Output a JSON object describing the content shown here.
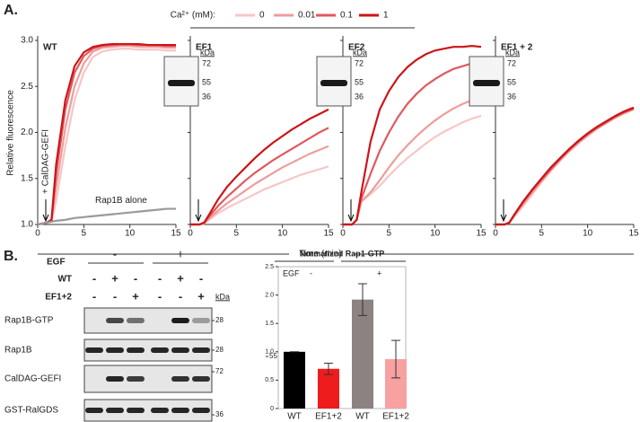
{
  "figure": {
    "panel_a": "A.",
    "panel_b": "B.",
    "legend_title": "Ca²⁺ (mM):",
    "y_label": "Relative fluorescence",
    "x_label": "Time (min)"
  },
  "chart_data": [
    {
      "type": "line",
      "title": "WT",
      "annotation": "+ CalDAG-GEFI",
      "x": [
        0,
        1,
        1.5,
        2,
        3,
        4,
        5,
        6,
        7,
        8,
        9,
        10,
        11,
        12,
        13,
        14,
        15
      ],
      "xlim": [
        0,
        15
      ],
      "xticks": [
        0,
        5,
        10,
        15
      ],
      "ylim": [
        1.0,
        3.0
      ],
      "yticks": [
        {
          "value": 1.0,
          "label": "1.0"
        },
        {
          "value": 1.5,
          "label": "1.5"
        },
        {
          "value": 2.0,
          "label": "2.0"
        },
        {
          "value": 2.5,
          "label": "2.5"
        },
        {
          "value": 3.0,
          "label": "3.0"
        }
      ],
      "series": [
        {
          "name": "0",
          "color": "#f7c6c6",
          "values": [
            1.0,
            1.02,
            1.03,
            1.25,
            1.85,
            2.35,
            2.65,
            2.82,
            2.88,
            2.9,
            2.91,
            2.91,
            2.9,
            2.9,
            2.9,
            2.89,
            2.89
          ]
        },
        {
          "name": "0.01",
          "color": "#ef9c9c",
          "values": [
            1.0,
            1.02,
            1.04,
            1.4,
            2.05,
            2.5,
            2.75,
            2.88,
            2.92,
            2.93,
            2.94,
            2.94,
            2.93,
            2.93,
            2.93,
            2.92,
            2.92
          ]
        },
        {
          "name": "0.1",
          "color": "#e0595e",
          "values": [
            1.0,
            1.02,
            1.05,
            1.55,
            2.25,
            2.65,
            2.83,
            2.91,
            2.94,
            2.95,
            2.96,
            2.96,
            2.95,
            2.95,
            2.95,
            2.94,
            2.94
          ]
        },
        {
          "name": "1",
          "color": "#cc1517",
          "values": [
            1.0,
            1.02,
            1.05,
            1.65,
            2.35,
            2.72,
            2.87,
            2.93,
            2.95,
            2.96,
            2.96,
            2.96,
            2.96,
            2.95,
            2.95,
            2.95,
            2.95
          ]
        },
        {
          "name": "Rap1B alone",
          "color": "#9a9a9a",
          "values": [
            1.0,
            1.02,
            1.03,
            1.04,
            1.05,
            1.07,
            1.08,
            1.09,
            1.1,
            1.11,
            1.12,
            1.13,
            1.14,
            1.15,
            1.16,
            1.17,
            1.17
          ]
        }
      ]
    },
    {
      "type": "line",
      "title": "EF1",
      "inset": {
        "unit": "kDa",
        "markers": [
          "72",
          "55",
          "36"
        ]
      },
      "x": [
        0,
        1,
        1.5,
        2,
        3,
        4,
        5,
        6,
        7,
        8,
        9,
        10,
        11,
        12,
        13,
        14,
        15
      ],
      "xlim": [
        0,
        15
      ],
      "xticks": [
        0,
        5,
        10,
        15
      ],
      "ylim": [
        1.0,
        3.0
      ],
      "yticks": [
        1.0,
        1.5,
        2.0,
        2.5,
        3.0
      ],
      "series": [
        {
          "color": "#f7c6c6",
          "values": [
            1.0,
            1.0,
            1.01,
            1.05,
            1.12,
            1.18,
            1.23,
            1.28,
            1.33,
            1.38,
            1.42,
            1.46,
            1.5,
            1.54,
            1.57,
            1.6,
            1.63
          ]
        },
        {
          "color": "#ef9c9c",
          "values": [
            1.0,
            1.0,
            1.01,
            1.06,
            1.15,
            1.23,
            1.3,
            1.37,
            1.44,
            1.5,
            1.56,
            1.62,
            1.67,
            1.72,
            1.77,
            1.81,
            1.85
          ]
        },
        {
          "color": "#e0595e",
          "values": [
            1.0,
            1.0,
            1.02,
            1.08,
            1.2,
            1.3,
            1.39,
            1.48,
            1.56,
            1.63,
            1.7,
            1.76,
            1.82,
            1.88,
            1.94,
            2.0,
            2.05
          ]
        },
        {
          "color": "#cc1517",
          "values": [
            1.0,
            1.0,
            1.02,
            1.1,
            1.27,
            1.41,
            1.52,
            1.62,
            1.72,
            1.81,
            1.89,
            1.96,
            2.03,
            2.09,
            2.15,
            2.2,
            2.25
          ]
        }
      ]
    },
    {
      "type": "line",
      "title": "EF2",
      "inset": {
        "unit": "kDa",
        "markers": [
          "72",
          "55",
          "36"
        ]
      },
      "x": [
        0,
        1,
        1.5,
        2,
        3,
        4,
        5,
        6,
        7,
        8,
        9,
        10,
        11,
        12,
        13,
        14,
        15
      ],
      "xlim": [
        0,
        15
      ],
      "xticks": [
        0,
        5,
        10,
        15
      ],
      "ylim": [
        1.0,
        3.0
      ],
      "yticks": [
        1.0,
        1.5,
        2.0,
        2.5,
        3.0
      ],
      "series": [
        {
          "color": "#f7c6c6",
          "values": [
            1.0,
            1.0,
            1.05,
            1.25,
            1.33,
            1.42,
            1.53,
            1.63,
            1.72,
            1.8,
            1.88,
            1.95,
            2.01,
            2.06,
            2.11,
            2.15,
            2.18
          ]
        },
        {
          "color": "#ef9c9c",
          "values": [
            1.0,
            1.0,
            1.05,
            1.25,
            1.35,
            1.48,
            1.62,
            1.75,
            1.86,
            1.96,
            2.05,
            2.13,
            2.2,
            2.26,
            2.31,
            2.35,
            2.38
          ]
        },
        {
          "color": "#e0595e",
          "values": [
            1.0,
            1.0,
            1.05,
            1.28,
            1.55,
            1.8,
            2.0,
            2.17,
            2.31,
            2.42,
            2.51,
            2.58,
            2.64,
            2.69,
            2.72,
            2.75,
            2.76
          ]
        },
        {
          "color": "#cc1517",
          "values": [
            1.0,
            1.0,
            1.05,
            1.35,
            1.9,
            2.25,
            2.45,
            2.6,
            2.71,
            2.79,
            2.85,
            2.89,
            2.91,
            2.93,
            2.93,
            2.94,
            2.93
          ]
        }
      ]
    },
    {
      "type": "line",
      "title": "EF1 + 2",
      "inset": {
        "unit": "kDa",
        "markers": [
          "72",
          "55",
          "36"
        ]
      },
      "x": [
        0,
        1,
        1.5,
        2,
        3,
        4,
        5,
        6,
        7,
        8,
        9,
        10,
        11,
        12,
        13,
        14,
        15
      ],
      "xlim": [
        0,
        15
      ],
      "xticks": [
        0,
        5,
        10,
        15
      ],
      "ylim": [
        1.0,
        3.0
      ],
      "yticks": [
        1.0,
        1.5,
        2.0,
        2.5,
        3.0
      ],
      "series": [
        {
          "color": "#f7c6c6",
          "values": [
            1.0,
            1.0,
            1.02,
            1.08,
            1.2,
            1.33,
            1.46,
            1.58,
            1.69,
            1.79,
            1.88,
            1.96,
            2.04,
            2.11,
            2.17,
            2.22,
            2.26
          ]
        },
        {
          "color": "#ef9c9c",
          "values": [
            1.0,
            1.0,
            1.02,
            1.09,
            1.22,
            1.35,
            1.47,
            1.59,
            1.7,
            1.8,
            1.89,
            1.97,
            2.04,
            2.1,
            2.16,
            2.21,
            2.25
          ]
        },
        {
          "color": "#e0595e",
          "values": [
            1.0,
            1.0,
            1.02,
            1.1,
            1.24,
            1.37,
            1.49,
            1.6,
            1.71,
            1.81,
            1.9,
            1.98,
            2.05,
            2.11,
            2.17,
            2.22,
            2.26
          ]
        },
        {
          "color": "#cc1517",
          "values": [
            1.0,
            1.0,
            1.02,
            1.1,
            1.25,
            1.38,
            1.5,
            1.62,
            1.72,
            1.82,
            1.91,
            1.99,
            2.06,
            2.12,
            2.18,
            2.23,
            2.27
          ]
        }
      ]
    },
    {
      "type": "bar",
      "title": "Normalized Rap1-GTP",
      "group_label": "EGF",
      "groups": [
        "-",
        "+"
      ],
      "categories": [
        "WT",
        "EF1+2",
        "WT",
        "EF1+2"
      ],
      "values": [
        1.0,
        0.7,
        1.92,
        0.87
      ],
      "errors": [
        0,
        0.1,
        0.28,
        0.33
      ],
      "colors": [
        "#000000",
        "#ee1c1c",
        "#8c8282",
        "#f7a1a1"
      ],
      "ylim": [
        0,
        2.5
      ],
      "yticks": [
        0,
        0.5,
        {
          "value": 1.0,
          "label": "1.0"
        },
        {
          "value": 1.5,
          "label": "1.5"
        },
        {
          "value": 2.0,
          "label": "2.0"
        },
        {
          "value": 2.5,
          "label": "2.5"
        }
      ]
    }
  ],
  "blot": {
    "group_label": "EGF",
    "groups": [
      "-",
      "+"
    ],
    "rows": [
      {
        "label": "WT",
        "signs": [
          "-",
          "+",
          "-",
          "-",
          "+",
          "-"
        ]
      },
      {
        "label": "EF1+2",
        "signs": [
          "-",
          "-",
          "+",
          "-",
          "-",
          "+"
        ]
      }
    ],
    "unit": "kDa",
    "panels": [
      {
        "label": "Rap1B-GTP",
        "markers": [
          "28"
        ]
      },
      {
        "label": "Rap1B",
        "markers": [
          "28"
        ]
      },
      {
        "label": "CalDAG-GEFI",
        "markers": [
          "72",
          "55"
        ]
      },
      {
        "label": "GST-RalGDS",
        "markers": [
          "36"
        ]
      }
    ]
  }
}
